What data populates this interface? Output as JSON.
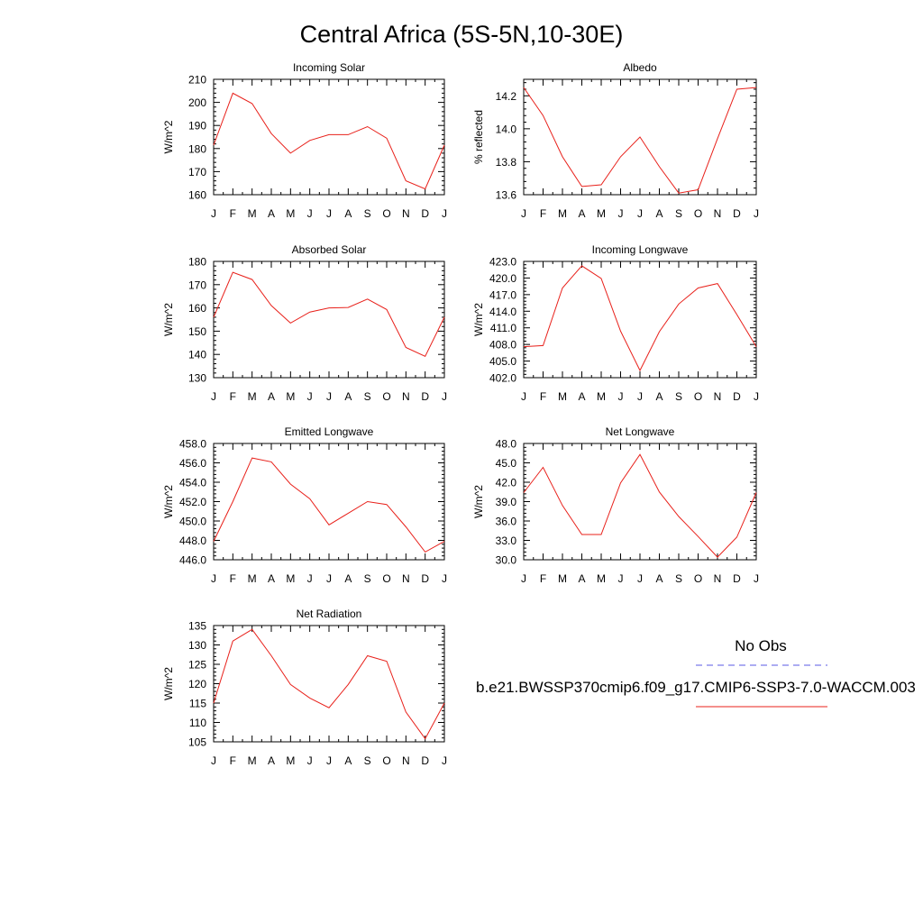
{
  "title": "Central Africa (5S-5N,10-30E)",
  "colors": {
    "model_line": "#e8201a",
    "obs_line": "#5a5ae6",
    "axis": "#000000"
  },
  "legend": {
    "obs_label": "No Obs",
    "model_label": "b.e21.BWSSP370cmip6.f09_g17.CMIP6-SSP3-7.0-WACCM.003"
  },
  "chart_data": [
    {
      "type": "line",
      "title": "Incoming Solar",
      "ylabel": "W/m^2",
      "x": [
        "J",
        "F",
        "M",
        "A",
        "M",
        "J",
        "J",
        "A",
        "S",
        "O",
        "N",
        "D",
        "J"
      ],
      "ylim": [
        160,
        210
      ],
      "yticks": [
        160,
        170,
        180,
        190,
        200,
        210
      ],
      "ytick_labels": [
        "160",
        "170",
        "180",
        "190",
        "200",
        "210"
      ],
      "series": [
        {
          "values": [
            181.5,
            204,
            199.5,
            186.5,
            178,
            183.5,
            186,
            186,
            189.5,
            184.5,
            166,
            162.5,
            181.5
          ]
        }
      ]
    },
    {
      "type": "line",
      "title": "Albedo",
      "ylabel": "% reflected",
      "x": [
        "J",
        "F",
        "M",
        "A",
        "M",
        "J",
        "J",
        "A",
        "S",
        "O",
        "N",
        "D",
        "J"
      ],
      "ylim": [
        13.6,
        14.3
      ],
      "yticks": [
        13.6,
        13.8,
        14.0,
        14.2
      ],
      "ytick_labels": [
        "13.6",
        "13.8",
        "14.0",
        "14.2"
      ],
      "series": [
        {
          "values": [
            14.25,
            14.08,
            13.83,
            13.65,
            13.66,
            13.83,
            13.95,
            13.77,
            13.61,
            13.63,
            13.94,
            14.24,
            14.25
          ]
        }
      ]
    },
    {
      "type": "line",
      "title": "Absorbed Solar",
      "ylabel": "W/m^2",
      "x": [
        "J",
        "F",
        "M",
        "A",
        "M",
        "J",
        "J",
        "A",
        "S",
        "O",
        "N",
        "D",
        "J"
      ],
      "ylim": [
        130,
        180
      ],
      "yticks": [
        130,
        140,
        150,
        160,
        170,
        180
      ],
      "ytick_labels": [
        "130",
        "140",
        "150",
        "160",
        "170",
        "180"
      ],
      "series": [
        {
          "values": [
            156,
            175.3,
            172.2,
            161,
            153.5,
            158.2,
            160,
            160.2,
            163.8,
            159.3,
            143,
            139.2,
            156
          ]
        }
      ]
    },
    {
      "type": "line",
      "title": "Incoming Longwave",
      "ylabel": "W/m^2",
      "x": [
        "J",
        "F",
        "M",
        "A",
        "M",
        "J",
        "J",
        "A",
        "S",
        "O",
        "N",
        "D",
        "J"
      ],
      "ylim": [
        402,
        423
      ],
      "yticks": [
        402,
        405,
        408,
        411,
        414,
        417,
        420,
        423
      ],
      "ytick_labels": [
        "402.0",
        "405.0",
        "408.0",
        "411.0",
        "414.0",
        "417.0",
        "420.0",
        "423.0"
      ],
      "series": [
        {
          "values": [
            407.6,
            407.8,
            418.2,
            422.2,
            419.9,
            410.4,
            403.3,
            410.3,
            415.3,
            418.2,
            419,
            413.4,
            407.6
          ]
        }
      ]
    },
    {
      "type": "line",
      "title": "Emitted Longwave",
      "ylabel": "W/m^2",
      "x": [
        "J",
        "F",
        "M",
        "A",
        "M",
        "J",
        "J",
        "A",
        "S",
        "O",
        "N",
        "D",
        "J"
      ],
      "ylim": [
        446,
        458
      ],
      "yticks": [
        446,
        448,
        450,
        452,
        454,
        456,
        458
      ],
      "ytick_labels": [
        "446.0",
        "448.0",
        "450.0",
        "452.0",
        "454.0",
        "456.0",
        "458.0"
      ],
      "series": [
        {
          "values": [
            447.9,
            452,
            456.5,
            456.1,
            453.8,
            452.3,
            449.6,
            450.8,
            452,
            451.7,
            449.4,
            446.8,
            447.9
          ]
        }
      ]
    },
    {
      "type": "line",
      "title": "Net Longwave",
      "ylabel": "W/m^2",
      "x": [
        "J",
        "F",
        "M",
        "A",
        "M",
        "J",
        "J",
        "A",
        "S",
        "O",
        "N",
        "D",
        "J"
      ],
      "ylim": [
        30,
        48
      ],
      "yticks": [
        30,
        33,
        36,
        39,
        42,
        45,
        48
      ],
      "ytick_labels": [
        "30.0",
        "33.0",
        "36.0",
        "39.0",
        "42.0",
        "45.0",
        "48.0"
      ],
      "series": [
        {
          "values": [
            40.4,
            44.3,
            38.4,
            33.9,
            33.9,
            41.9,
            46.3,
            40.5,
            36.7,
            33.6,
            30.4,
            33.5,
            40.4
          ]
        }
      ]
    },
    {
      "type": "line",
      "title": "Net Radiation",
      "ylabel": "W/m^2",
      "x": [
        "J",
        "F",
        "M",
        "A",
        "M",
        "J",
        "J",
        "A",
        "S",
        "O",
        "N",
        "D",
        "J"
      ],
      "ylim": [
        105,
        135
      ],
      "yticks": [
        105,
        110,
        115,
        120,
        125,
        130,
        135
      ],
      "ytick_labels": [
        "105",
        "110",
        "115",
        "120",
        "125",
        "130",
        "135"
      ],
      "series": [
        {
          "values": [
            115,
            131,
            134,
            127.2,
            119.8,
            116.3,
            113.8,
            119.8,
            127.2,
            125.8,
            112.7,
            105.8,
            115
          ]
        }
      ]
    }
  ]
}
